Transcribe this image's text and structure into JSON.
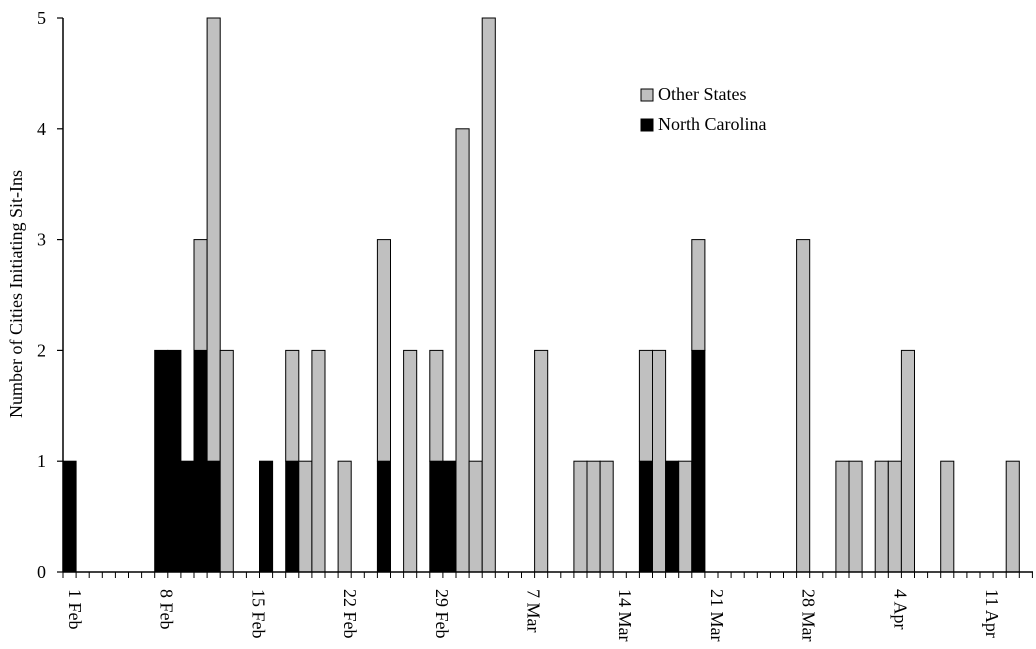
{
  "chart_data": {
    "type": "bar",
    "stacked": true,
    "ylabel": "Number of Cities Initiating Sit-Ins",
    "xlabel": "",
    "ylim": [
      0,
      5
    ],
    "y_ticks": [
      "0",
      "1",
      "2",
      "3",
      "4",
      "5"
    ],
    "x_tick_labels": [
      "1 Feb",
      "8 Feb",
      "15 Feb",
      "22 Feb",
      "29 Feb",
      "7 Mar",
      "14 Mar",
      "21 Mar",
      "28 Mar",
      "4 Apr",
      "11 Apr"
    ],
    "day_count": 74,
    "grid": false,
    "legend_position": "top-right",
    "legend": [
      {
        "name": "Other States",
        "color": "#c0c0c0"
      },
      {
        "name": "North Carolina",
        "color": "#000000"
      }
    ],
    "series": [
      {
        "name": "North Carolina",
        "color": "#000000",
        "values": [
          1,
          0,
          0,
          0,
          0,
          0,
          0,
          2,
          2,
          1,
          2,
          1,
          0,
          0,
          0,
          1,
          0,
          1,
          0,
          0,
          0,
          0,
          0,
          0,
          1,
          0,
          0,
          0,
          1,
          1,
          0,
          0,
          0,
          0,
          0,
          0,
          0,
          0,
          0,
          0,
          0,
          0,
          0,
          0,
          1,
          0,
          1,
          0,
          2,
          0,
          0,
          0,
          0,
          0,
          0,
          0,
          0,
          0,
          0,
          0,
          0,
          0,
          0,
          0,
          0,
          0,
          0,
          0,
          0,
          0,
          0,
          0,
          0,
          0
        ]
      },
      {
        "name": "Other States",
        "color": "#c0c0c0",
        "values": [
          0,
          0,
          0,
          0,
          0,
          0,
          0,
          0,
          0,
          0,
          1,
          4,
          2,
          0,
          0,
          0,
          0,
          1,
          1,
          2,
          0,
          1,
          0,
          0,
          2,
          0,
          2,
          0,
          1,
          0,
          4,
          1,
          5,
          0,
          0,
          0,
          2,
          0,
          0,
          1,
          1,
          1,
          0,
          0,
          1,
          2,
          0,
          1,
          1,
          0,
          0,
          0,
          0,
          0,
          0,
          0,
          3,
          0,
          0,
          1,
          1,
          0,
          1,
          1,
          2,
          0,
          0,
          1,
          0,
          0,
          0,
          0,
          1,
          0
        ]
      }
    ]
  }
}
